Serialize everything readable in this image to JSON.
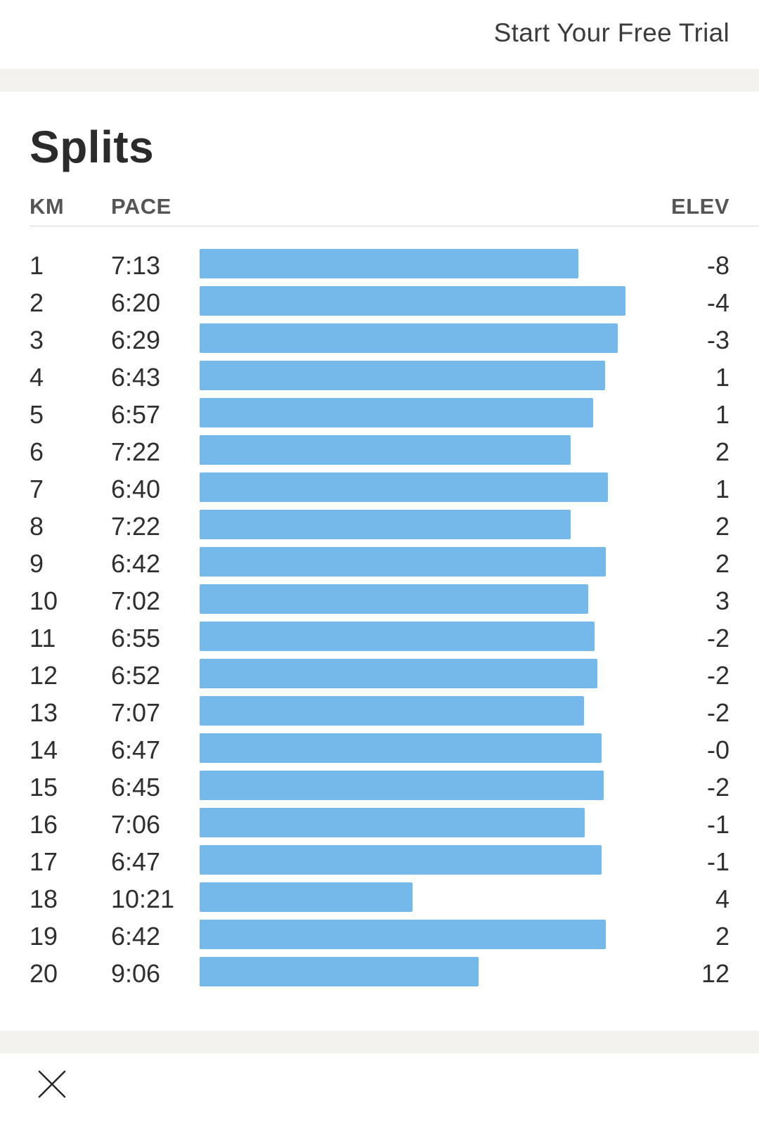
{
  "header": {
    "trial_label": "Start Your Free Trial"
  },
  "splits": {
    "title": "Splits",
    "columns": {
      "km": "KM",
      "pace": "PACE",
      "elev": "ELEV"
    },
    "bar_color": "#74b9e9",
    "rows": [
      {
        "km": "1",
        "pace": "7:13",
        "elev": "-8"
      },
      {
        "km": "2",
        "pace": "6:20",
        "elev": "-4"
      },
      {
        "km": "3",
        "pace": "6:29",
        "elev": "-3"
      },
      {
        "km": "4",
        "pace": "6:43",
        "elev": "1"
      },
      {
        "km": "5",
        "pace": "6:57",
        "elev": "1"
      },
      {
        "km": "6",
        "pace": "7:22",
        "elev": "2"
      },
      {
        "km": "7",
        "pace": "6:40",
        "elev": "1"
      },
      {
        "km": "8",
        "pace": "7:22",
        "elev": "2"
      },
      {
        "km": "9",
        "pace": "6:42",
        "elev": "2"
      },
      {
        "km": "10",
        "pace": "7:02",
        "elev": "3"
      },
      {
        "km": "11",
        "pace": "6:55",
        "elev": "-2"
      },
      {
        "km": "12",
        "pace": "6:52",
        "elev": "-2"
      },
      {
        "km": "13",
        "pace": "7:07",
        "elev": "-2"
      },
      {
        "km": "14",
        "pace": "6:47",
        "elev": "-0"
      },
      {
        "km": "15",
        "pace": "6:45",
        "elev": "-2"
      },
      {
        "km": "16",
        "pace": "7:06",
        "elev": "-1"
      },
      {
        "km": "17",
        "pace": "6:47",
        "elev": "-1"
      },
      {
        "km": "18",
        "pace": "10:21",
        "elev": "4"
      },
      {
        "km": "19",
        "pace": "6:42",
        "elev": "2"
      },
      {
        "km": "20",
        "pace": "9:06",
        "elev": "12"
      }
    ]
  },
  "footer": {
    "close_icon": "close-icon"
  }
}
